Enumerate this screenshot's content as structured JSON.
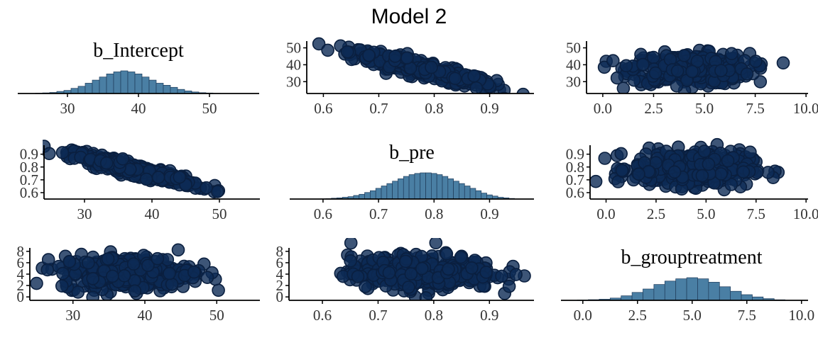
{
  "title": "Model 2",
  "colors": {
    "bar_fill": "#4a7fa4",
    "point_fill": "#0d2a55"
  },
  "chart_data": [
    {
      "panel": "1-1",
      "type": "histogram",
      "title": "b_Intercept",
      "xlim": [
        23,
        57
      ],
      "xticks": [
        "30",
        "40",
        "50"
      ],
      "xtick_values": [
        30,
        40,
        50
      ],
      "bins": [
        26,
        27,
        28,
        29,
        30,
        31,
        32,
        33,
        34,
        35,
        36,
        37,
        38,
        39,
        40,
        41,
        42,
        43,
        44,
        45,
        46,
        47,
        48,
        49,
        50,
        51,
        52
      ],
      "counts": [
        0.3,
        0.6,
        1,
        2,
        3,
        5,
        7,
        10,
        13,
        16,
        19,
        21,
        22,
        21,
        19,
        16,
        13,
        10,
        8,
        6,
        4,
        2.5,
        1.5,
        0.8,
        0.5,
        0.2,
        0.1
      ],
      "bin_width": 1
    },
    {
      "panel": "1-2",
      "type": "scatter",
      "x_param": "b_pre",
      "y_param": "b_Intercept",
      "xlim": [
        0.57,
        0.98
      ],
      "ylim": [
        23,
        54
      ],
      "xticks": [
        "0.6",
        "0.7",
        "0.8",
        "0.9"
      ],
      "xtick_values": [
        0.6,
        0.7,
        0.8,
        0.9
      ],
      "yticks": [
        "30",
        "40",
        "50"
      ],
      "ytick_values": [
        30,
        40,
        50
      ],
      "relation": {
        "slope": -78,
        "intercept": 98,
        "noise": 2.2,
        "x_mean": 0.78,
        "x_sd": 0.065
      }
    },
    {
      "panel": "1-3",
      "type": "scatter",
      "x_param": "b_grouptreatment",
      "y_param": "b_Intercept",
      "xlim": [
        -0.8,
        10.1
      ],
      "ylim": [
        23,
        54
      ],
      "xticks": [
        "0.0",
        "2.5",
        "5.0",
        "7.5",
        "10.0"
      ],
      "xtick_values": [
        0,
        2.5,
        5,
        7.5,
        10
      ],
      "yticks": [
        "30",
        "40",
        "50"
      ],
      "ytick_values": [
        30,
        40,
        50
      ],
      "relation": {
        "slope": 0,
        "intercept": 37.5,
        "noise": 4.5,
        "x_mean": 4.3,
        "x_sd": 1.45
      }
    },
    {
      "panel": "2-1",
      "type": "scatter",
      "x_param": "b_Intercept",
      "y_param": "b_pre",
      "xlim": [
        24,
        56
      ],
      "ylim": [
        0.55,
        0.97
      ],
      "xticks": [
        "30",
        "40",
        "50"
      ],
      "xtick_values": [
        30,
        40,
        50
      ],
      "yticks": [
        "0.6",
        "0.7",
        "0.8",
        "0.9"
      ],
      "ytick_values": [
        0.6,
        0.7,
        0.8,
        0.9
      ],
      "relation": {
        "slope": -0.0128,
        "intercept": 1.26,
        "noise": 0.022,
        "x_mean": 37.5,
        "x_sd": 4.5
      }
    },
    {
      "panel": "2-2",
      "type": "histogram",
      "title": "b_pre",
      "xlim": [
        0.54,
        0.98
      ],
      "xticks": [
        "0.6",
        "0.7",
        "0.8",
        "0.9"
      ],
      "xtick_values": [
        0.6,
        0.7,
        0.8,
        0.9
      ],
      "bins": [
        0.6,
        0.61,
        0.62,
        0.63,
        0.64,
        0.65,
        0.66,
        0.67,
        0.68,
        0.69,
        0.7,
        0.71,
        0.72,
        0.73,
        0.74,
        0.75,
        0.76,
        0.77,
        0.78,
        0.79,
        0.8,
        0.81,
        0.82,
        0.83,
        0.84,
        0.85,
        0.86,
        0.87,
        0.88,
        0.89,
        0.9,
        0.91,
        0.92,
        0.93,
        0.94
      ],
      "counts": [
        0.2,
        0.4,
        0.7,
        1,
        1.5,
        2,
        3,
        4,
        5.5,
        7,
        9,
        11,
        13,
        15,
        17,
        19,
        20.5,
        21.5,
        22,
        22,
        21.5,
        20.5,
        19,
        17,
        15,
        13,
        11,
        9,
        7,
        5,
        3.5,
        2.5,
        1.5,
        1,
        0.5
      ],
      "bin_width": 0.01
    },
    {
      "panel": "2-3",
      "type": "scatter",
      "x_param": "b_grouptreatment",
      "y_param": "b_pre",
      "xlim": [
        -0.8,
        10.1
      ],
      "ylim": [
        0.55,
        0.97
      ],
      "xticks": [
        "0.0",
        "2.5",
        "5.0",
        "7.5",
        "10.0"
      ],
      "xtick_values": [
        0,
        2.5,
        5,
        7.5,
        10
      ],
      "yticks": [
        "0.6",
        "0.7",
        "0.8",
        "0.9"
      ],
      "ytick_values": [
        0.6,
        0.7,
        0.8,
        0.9
      ],
      "relation": {
        "slope": 0,
        "intercept": 0.785,
        "noise": 0.065,
        "x_mean": 4.3,
        "x_sd": 1.45
      }
    },
    {
      "panel": "3-1",
      "type": "scatter",
      "x_param": "b_Intercept",
      "y_param": "b_grouptreatment",
      "xlim": [
        24,
        56
      ],
      "ylim": [
        -0.6,
        8.6
      ],
      "xticks": [
        "30",
        "40",
        "50"
      ],
      "xtick_values": [
        30,
        40,
        50
      ],
      "yticks": [
        "0",
        "2",
        "4",
        "6",
        "8"
      ],
      "ytick_values": [
        0,
        2,
        4,
        6,
        8
      ],
      "relation": {
        "slope": 0,
        "intercept": 4.3,
        "noise": 1.45,
        "x_mean": 37.5,
        "x_sd": 4.5
      }
    },
    {
      "panel": "3-2",
      "type": "scatter",
      "x_param": "b_pre",
      "y_param": "b_grouptreatment",
      "xlim": [
        0.54,
        0.98
      ],
      "ylim": [
        -0.6,
        8.6
      ],
      "xticks": [
        "0.6",
        "0.7",
        "0.8",
        "0.9"
      ],
      "xtick_values": [
        0.6,
        0.7,
        0.8,
        0.9
      ],
      "yticks": [
        "0",
        "2",
        "4",
        "6",
        "8"
      ],
      "ytick_values": [
        0,
        2,
        4,
        6,
        8
      ],
      "relation": {
        "slope": 0,
        "intercept": 4.3,
        "noise": 1.45,
        "x_mean": 0.78,
        "x_sd": 0.065
      }
    },
    {
      "panel": "3-3",
      "type": "histogram",
      "title": "b_grouptreatment",
      "xlim": [
        -1.0,
        10.3
      ],
      "xticks": [
        "0.0",
        "2.5",
        "5.0",
        "7.5",
        "10.0"
      ],
      "xtick_values": [
        0,
        2.5,
        5,
        7.5,
        10
      ],
      "bins": [
        0.0,
        0.5,
        1.0,
        1.5,
        2.0,
        2.5,
        3.0,
        3.5,
        4.0,
        4.5,
        5.0,
        5.5,
        6.0,
        6.5,
        7.0,
        7.5,
        8.0,
        8.5,
        9.0
      ],
      "counts": [
        0.3,
        0.6,
        1,
        2,
        4,
        7,
        10,
        14,
        17,
        19,
        20,
        19,
        16,
        12,
        8,
        5,
        3,
        1.5,
        0.5
      ],
      "bin_width": 0.5
    }
  ]
}
